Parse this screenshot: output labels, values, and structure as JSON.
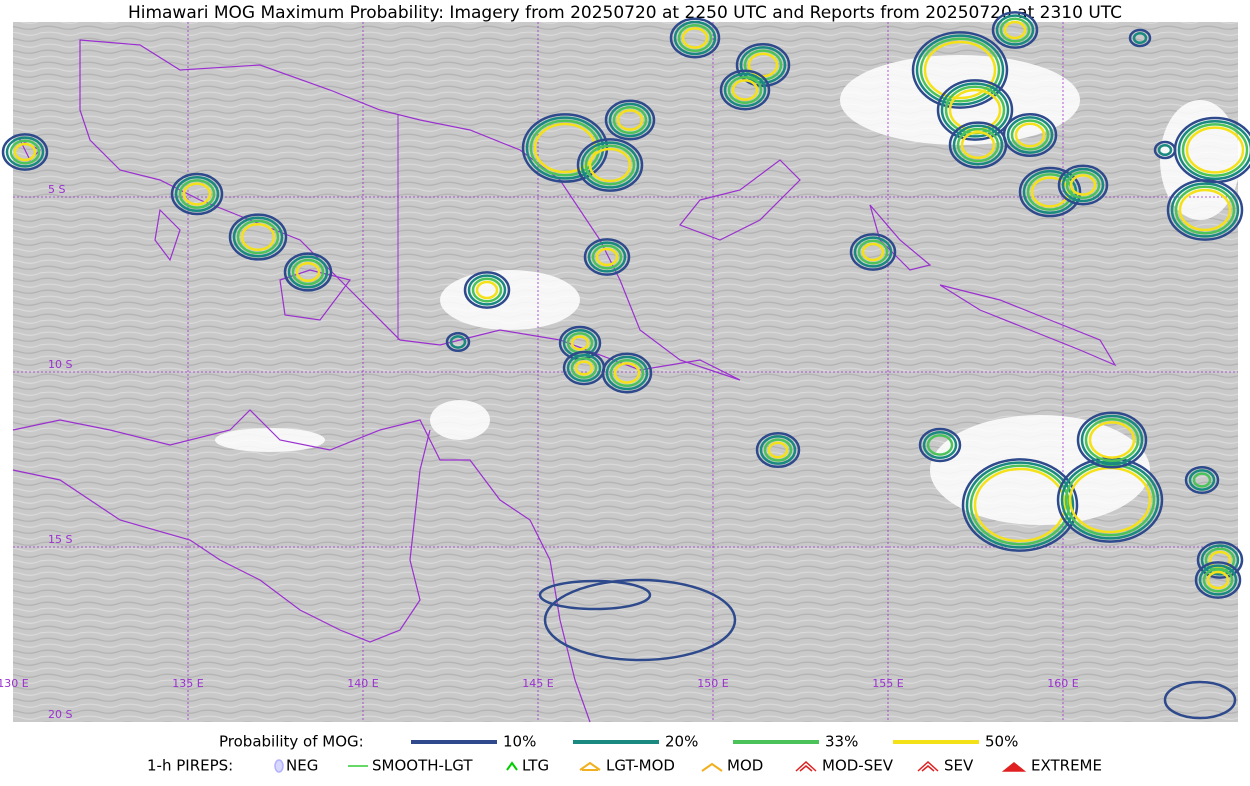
{
  "title": "Himawari MOG Maximum Probability: Imagery from 20250720 at 2250 UTC and Reports from 20250720 at 2310 UTC",
  "grid_labels": {
    "lon": [
      "130 E",
      "135 E",
      "140 E",
      "145 E",
      "150 E",
      "155 E",
      "160 E"
    ],
    "lat": [
      "5 S",
      "10 S",
      "15 S",
      "20 S"
    ]
  },
  "legend": {
    "probability": {
      "label": "Probability of MOG:",
      "items": [
        {
          "label": "10%",
          "color": "#2e4a8c"
        },
        {
          "label": "20%",
          "color": "#1a8a80"
        },
        {
          "label": "33%",
          "color": "#4cc25a"
        },
        {
          "label": "50%",
          "color": "#f5e117"
        }
      ]
    },
    "pireps": {
      "label": "1-h PIREPS:",
      "items": [
        "NEG",
        "SMOOTH-LGT",
        "LTG",
        "LGT-MOD",
        "MOD",
        "MOD-SEV",
        "SEV",
        "EXTREME"
      ]
    }
  }
}
